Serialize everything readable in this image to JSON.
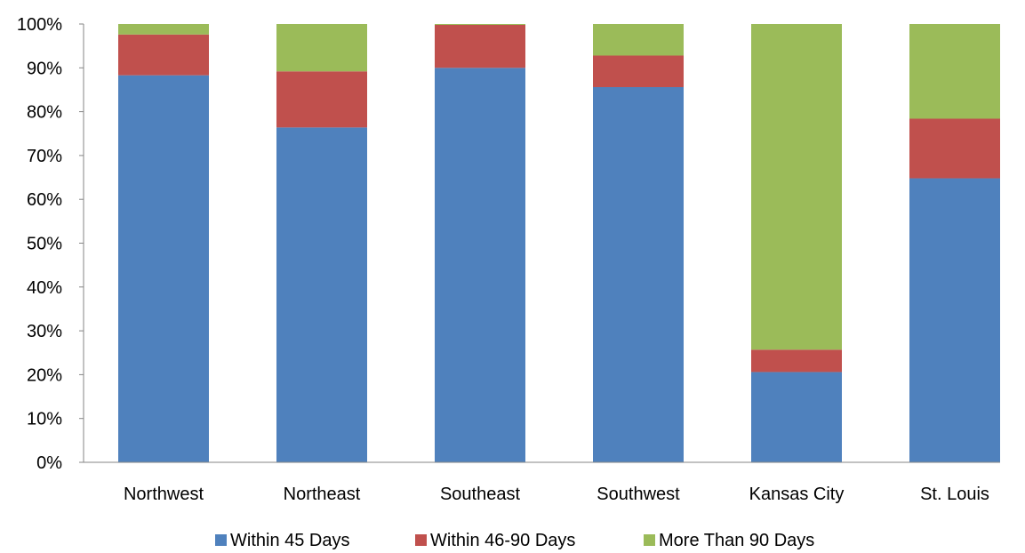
{
  "chart_data": {
    "type": "bar",
    "stacking": "percent",
    "title": "",
    "xlabel": "",
    "ylabel": "",
    "categories": [
      "Northwest",
      "Northeast",
      "Southeast",
      "Southwest",
      "Kansas City",
      "St. Louis"
    ],
    "series": [
      {
        "name": "Within 45 Days",
        "color": "#4f81bd",
        "values": [
          88.3,
          76.4,
          90.0,
          85.6,
          20.6,
          64.8
        ]
      },
      {
        "name": "Within 46-90 Days",
        "color": "#c0504d",
        "values": [
          9.3,
          12.8,
          9.8,
          7.2,
          5.1,
          13.6
        ]
      },
      {
        "name": "More Than 90 Days",
        "color": "#9bbb59",
        "values": [
          2.4,
          10.8,
          0.2,
          7.2,
          74.3,
          21.6
        ]
      }
    ],
    "ylim": [
      0,
      100
    ],
    "yticks": [
      "0%",
      "10%",
      "20%",
      "30%",
      "40%",
      "50%",
      "60%",
      "70%",
      "80%",
      "90%",
      "100%"
    ],
    "grid": false,
    "legend_position": "bottom"
  }
}
